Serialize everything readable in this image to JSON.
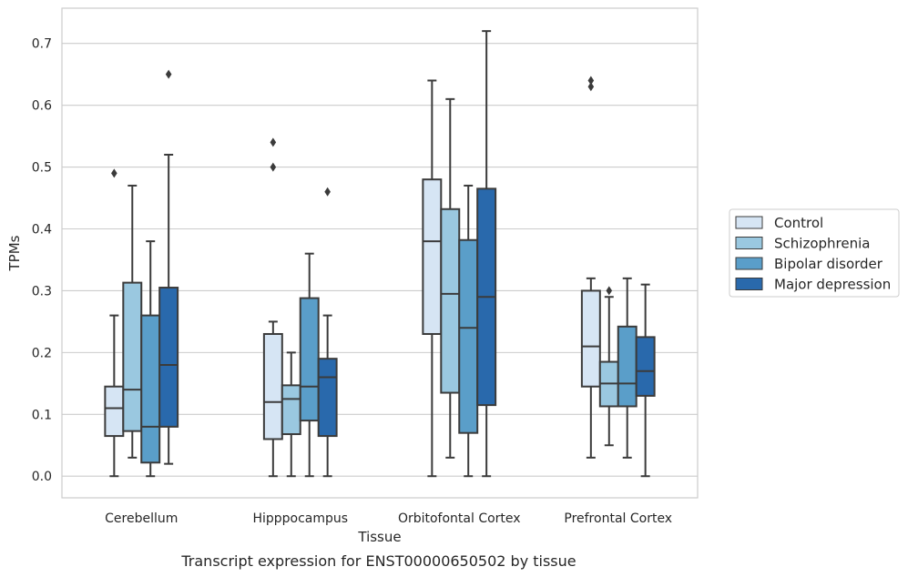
{
  "caption": "Transcript expression for ENST00000650502 by tissue",
  "chart_data": {
    "type": "box",
    "xlabel": "Tissue",
    "ylabel": "TPMs",
    "ylim": [
      -0.035,
      0.757
    ],
    "yticks": [
      0.0,
      0.1,
      0.2,
      0.3,
      0.4,
      0.5,
      0.6,
      0.7
    ],
    "ytick_labels": [
      "0.0",
      "0.1",
      "0.2",
      "0.3",
      "0.4",
      "0.5",
      "0.6",
      "0.7"
    ],
    "grid": "horizontal",
    "legend_position": "right",
    "categories": [
      "Cerebellum",
      "Hipppocampus",
      "Orbitofontal Cortex",
      "Prefrontal Cortex"
    ],
    "series": [
      {
        "name": "Control",
        "color": "#d6e5f4",
        "boxes": [
          {
            "whislo": 0.0,
            "q1": 0.065,
            "med": 0.11,
            "q3": 0.145,
            "whishi": 0.26,
            "fliers": [
              0.49
            ]
          },
          {
            "whislo": 0.0,
            "q1": 0.06,
            "med": 0.12,
            "q3": 0.23,
            "whishi": 0.25,
            "fliers": [
              0.5,
              0.54
            ]
          },
          {
            "whislo": 0.0,
            "q1": 0.23,
            "med": 0.38,
            "q3": 0.48,
            "whishi": 0.64,
            "fliers": []
          },
          {
            "whislo": 0.03,
            "q1": 0.145,
            "med": 0.21,
            "q3": 0.3,
            "whishi": 0.32,
            "fliers": [
              0.63,
              0.64
            ]
          }
        ]
      },
      {
        "name": "Schizophrenia",
        "color": "#9ac8e0",
        "boxes": [
          {
            "whislo": 0.03,
            "q1": 0.073,
            "med": 0.14,
            "q3": 0.313,
            "whishi": 0.47,
            "fliers": []
          },
          {
            "whislo": 0.0,
            "q1": 0.068,
            "med": 0.125,
            "q3": 0.147,
            "whishi": 0.2,
            "fliers": []
          },
          {
            "whislo": 0.03,
            "q1": 0.135,
            "med": 0.295,
            "q3": 0.432,
            "whishi": 0.61,
            "fliers": []
          },
          {
            "whislo": 0.05,
            "q1": 0.113,
            "med": 0.15,
            "q3": 0.185,
            "whishi": 0.29,
            "fliers": [
              0.3
            ]
          }
        ]
      },
      {
        "name": "Bipolar disorder",
        "color": "#5a9ec9",
        "boxes": [
          {
            "whislo": 0.0,
            "q1": 0.022,
            "med": 0.08,
            "q3": 0.26,
            "whishi": 0.38,
            "fliers": []
          },
          {
            "whislo": 0.0,
            "q1": 0.09,
            "med": 0.145,
            "q3": 0.288,
            "whishi": 0.36,
            "fliers": []
          },
          {
            "whislo": 0.0,
            "q1": 0.07,
            "med": 0.24,
            "q3": 0.382,
            "whishi": 0.47,
            "fliers": []
          },
          {
            "whislo": 0.03,
            "q1": 0.113,
            "med": 0.15,
            "q3": 0.242,
            "whishi": 0.32,
            "fliers": []
          }
        ]
      },
      {
        "name": "Major depression",
        "color": "#2969ac",
        "boxes": [
          {
            "whislo": 0.02,
            "q1": 0.08,
            "med": 0.18,
            "q3": 0.305,
            "whishi": 0.52,
            "fliers": [
              0.65
            ]
          },
          {
            "whislo": 0.0,
            "q1": 0.065,
            "med": 0.16,
            "q3": 0.19,
            "whishi": 0.26,
            "fliers": [
              0.46
            ]
          },
          {
            "whislo": 0.0,
            "q1": 0.115,
            "med": 0.29,
            "q3": 0.465,
            "whishi": 0.72,
            "fliers": []
          },
          {
            "whislo": 0.0,
            "q1": 0.13,
            "med": 0.17,
            "q3": 0.225,
            "whishi": 0.31,
            "fliers": []
          }
        ]
      }
    ]
  }
}
